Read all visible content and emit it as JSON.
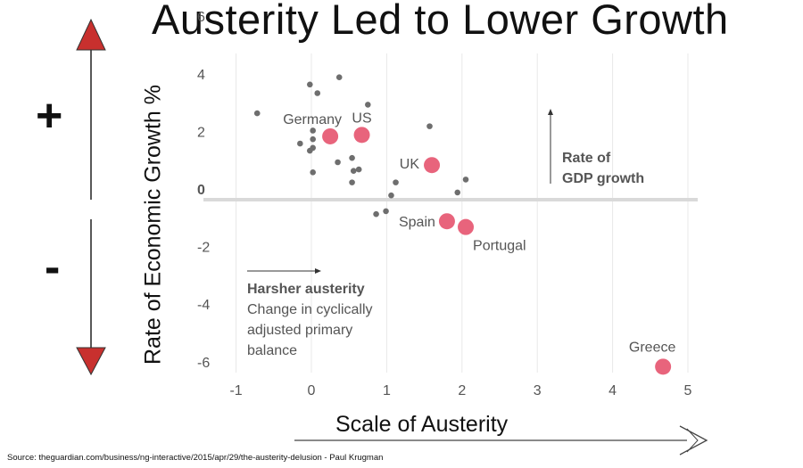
{
  "header": {
    "title": "Austerity Led to Lower Growth"
  },
  "side": {
    "plus": "+",
    "minus": "-"
  },
  "axes": {
    "ylabel": "Rate of Economic Growth %",
    "xlabel": "Scale of Austerity"
  },
  "annotations": {
    "growth_arrow_label_1": "Rate of",
    "growth_arrow_label_2": "GDP growth",
    "austerity_heading": "Harsher austerity",
    "austerity_line_1": "Change in cyclically",
    "austerity_line_2": "adjusted primary",
    "austerity_line_3": "balance"
  },
  "source": "Source: theguardian.com/business/ng-interactive/2015/apr/29/the-austerity-delusion - Paul Krugman",
  "colors": {
    "highlight": "#e8647c",
    "points": "#6e6e6e",
    "zero_line": "#d9d9d9",
    "grid": "#e8e8e8",
    "arrow_red": "#c8302e"
  },
  "chart_data": {
    "type": "scatter",
    "title": "Austerity Led to Lower Growth",
    "xlabel": "Scale of Austerity",
    "ylabel": "Rate of Economic Growth %",
    "xlim": [
      -1.4,
      5.1
    ],
    "ylim": [
      -6.5,
      6.2
    ],
    "x_ticks": [
      -1,
      0,
      1,
      2,
      3,
      4,
      5
    ],
    "y_ticks": [
      6,
      4,
      2,
      0,
      -2,
      -4,
      -6
    ],
    "grid": "vertical",
    "highlighted": [
      {
        "label": "Germany",
        "x": 0.25,
        "y": 2.2
      },
      {
        "label": "US",
        "x": 0.67,
        "y": 2.25
      },
      {
        "label": "UK",
        "x": 1.6,
        "y": 1.2
      },
      {
        "label": "Spain",
        "x": 1.8,
        "y": -0.75
      },
      {
        "label": "Portugal",
        "x": 2.05,
        "y": -0.95
      },
      {
        "label": "Greece",
        "x": 4.67,
        "y": -5.8
      }
    ],
    "points": [
      {
        "x": -0.72,
        "y": 3.0
      },
      {
        "x": -0.02,
        "y": 4.0
      },
      {
        "x": 0.08,
        "y": 3.7
      },
      {
        "x": 0.37,
        "y": 4.25
      },
      {
        "x": 0.75,
        "y": 3.3
      },
      {
        "x": -0.15,
        "y": 1.95
      },
      {
        "x": 0.02,
        "y": 2.4
      },
      {
        "x": 0.02,
        "y": 2.1
      },
      {
        "x": 0.02,
        "y": 1.8
      },
      {
        "x": -0.02,
        "y": 1.7
      },
      {
        "x": 0.02,
        "y": 0.95
      },
      {
        "x": 0.35,
        "y": 1.3
      },
      {
        "x": 0.54,
        "y": 1.45
      },
      {
        "x": 0.56,
        "y": 1.0
      },
      {
        "x": 0.63,
        "y": 1.05
      },
      {
        "x": 0.54,
        "y": 0.6
      },
      {
        "x": 1.57,
        "y": 2.55
      },
      {
        "x": 1.12,
        "y": 0.6
      },
      {
        "x": 1.06,
        "y": 0.15
      },
      {
        "x": 0.86,
        "y": -0.5
      },
      {
        "x": 0.99,
        "y": -0.4
      },
      {
        "x": 1.94,
        "y": 0.25
      },
      {
        "x": 2.05,
        "y": 0.7
      }
    ]
  }
}
